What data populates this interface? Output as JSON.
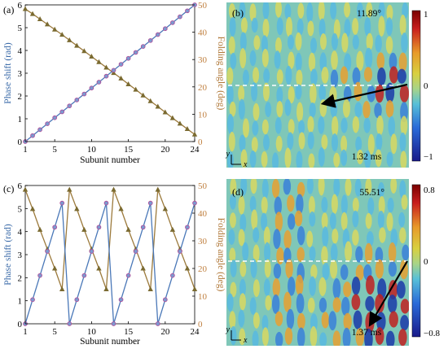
{
  "colors": {
    "phase": "#4a78b8",
    "phase_marker": "#b0509a",
    "fold": "#9c7a3c",
    "fold_marker": "#7a6a30",
    "fold_axis": "#c08040",
    "fold_line_c_up": "#6aa84f",
    "arrow": "#000000",
    "dash": "#ffffff"
  },
  "chart_data": [
    {
      "panel": "(a)",
      "type": "line",
      "xlabel": "Subunit number",
      "ylabel_left": "Phase shift (rad)",
      "ylabel_right": "Folding angle (deg)",
      "xlim": [
        1,
        24
      ],
      "ylim_left": [
        0,
        6
      ],
      "ylim_right": [
        0,
        50
      ],
      "xticks": [
        "1",
        "5",
        "10",
        "15",
        "20",
        "24"
      ],
      "yticks_left": [
        "0",
        "1",
        "2",
        "3",
        "4",
        "5",
        "6"
      ],
      "yticks_right": [
        "0",
        "10",
        "20",
        "30",
        "40",
        "50"
      ],
      "series": [
        {
          "axis": "left",
          "x": [
            1,
            2,
            3,
            4,
            5,
            6,
            7,
            8,
            9,
            10,
            11,
            12,
            13,
            14,
            15,
            16,
            17,
            18,
            19,
            20,
            21,
            22,
            23,
            24
          ],
          "values": [
            0,
            0.2609,
            0.5217,
            0.7826,
            1.0435,
            1.3043,
            1.5652,
            1.8261,
            2.087,
            2.3478,
            2.6087,
            2.8696,
            3.1304,
            3.3913,
            3.6522,
            3.913,
            4.1739,
            4.4348,
            4.6957,
            4.9565,
            5.2174,
            5.4783,
            5.7391,
            6.0
          ]
        },
        {
          "axis": "right",
          "x": [
            1,
            2,
            3,
            4,
            5,
            6,
            7,
            8,
            9,
            10,
            11,
            12,
            13,
            14,
            15,
            16,
            17,
            18,
            19,
            20,
            21,
            22,
            23,
            24
          ],
          "values": [
            48.5,
            46.7,
            44.8,
            42.9,
            41.0,
            39.1,
            37.1,
            35.1,
            33.1,
            31.1,
            29.1,
            27.1,
            25.1,
            23.1,
            21.0,
            19.0,
            16.9,
            14.8,
            12.8,
            10.7,
            8.6,
            6.6,
            4.6,
            2.6
          ]
        }
      ]
    },
    {
      "panel": "(c)",
      "type": "line",
      "xlabel": "Subunit number",
      "ylabel_left": "Phase shift (rad)",
      "ylabel_right": "Folding angle (deg)",
      "xlim": [
        1,
        24
      ],
      "ylim_left": [
        0,
        6
      ],
      "ylim_right": [
        0,
        50
      ],
      "xticks": [
        "1",
        "5",
        "10",
        "15",
        "20",
        "24"
      ],
      "yticks_left": [
        "0",
        "1",
        "2",
        "3",
        "4",
        "5",
        "6"
      ],
      "yticks_right": [
        "0",
        "10",
        "20",
        "30",
        "40",
        "50"
      ],
      "series": [
        {
          "axis": "left",
          "x": [
            1,
            2,
            3,
            4,
            5,
            6,
            7,
            8,
            9,
            10,
            11,
            12,
            13,
            14,
            15,
            16,
            17,
            18,
            19,
            20,
            21,
            22,
            23,
            24
          ],
          "values": [
            0,
            1.047,
            2.094,
            3.142,
            4.189,
            5.236,
            0,
            1.047,
            2.094,
            3.142,
            4.189,
            5.236,
            0,
            1.047,
            2.094,
            3.142,
            4.189,
            5.236,
            0,
            1.047,
            2.094,
            3.142,
            4.189,
            5.236
          ]
        },
        {
          "axis": "right",
          "x": [
            1,
            2,
            3,
            4,
            5,
            6,
            7,
            8,
            9,
            10,
            11,
            12,
            13,
            14,
            15,
            16,
            17,
            18,
            19,
            20,
            21,
            22,
            23,
            24
          ],
          "values": [
            48.5,
            41.5,
            34.0,
            27.0,
            20.0,
            12.5,
            48.5,
            41.5,
            34.0,
            27.0,
            20.0,
            12.5,
            48.5,
            41.5,
            34.0,
            27.0,
            20.0,
            12.5,
            48.5,
            41.5,
            34.0,
            27.0,
            20.0,
            12.5
          ]
        }
      ]
    },
    {
      "panel": "(b)",
      "type": "heatmap",
      "angle_label": "11.89°",
      "time_label": "1.32 ms",
      "colorbar_ticks": [
        "1",
        "0",
        "−1"
      ],
      "axis_y": "y",
      "axis_x": "x"
    },
    {
      "panel": "(d)",
      "type": "heatmap",
      "angle_label": "55.51°",
      "time_label": "1.37 ms",
      "colorbar_ticks": [
        "0.8",
        "0",
        "−0.8"
      ],
      "axis_y": "y",
      "axis_x": "x"
    }
  ]
}
